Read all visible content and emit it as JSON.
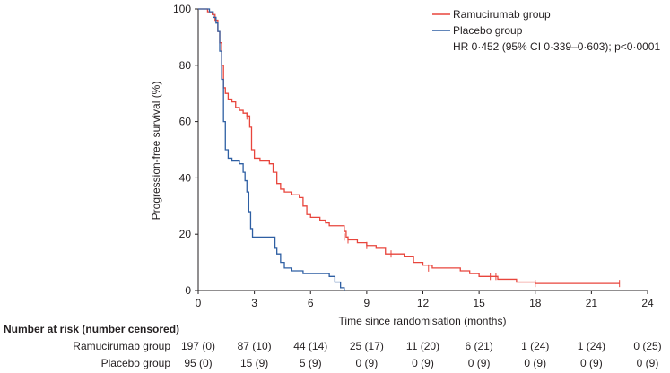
{
  "chart_data": {
    "type": "line",
    "subtype": "kaplan-meier",
    "xlabel": "Time since randomisation (months)",
    "ylabel": "Progression-free survival (%)",
    "xlim": [
      0,
      24
    ],
    "ylim": [
      0,
      100
    ],
    "xticks": [
      0,
      3,
      6,
      9,
      12,
      15,
      18,
      21,
      24
    ],
    "yticks": [
      0,
      20,
      40,
      60,
      80,
      100
    ],
    "legend_position": "top-right",
    "annotation": "HR 0·452 (95% CI 0·339–0·603); p<0·0001",
    "series": [
      {
        "name": "Ramucirumab group",
        "color": "#e8453c",
        "steps": [
          [
            0,
            100
          ],
          [
            0.5,
            99
          ],
          [
            0.75,
            98
          ],
          [
            0.9,
            96
          ],
          [
            1.05,
            92
          ],
          [
            1.15,
            88
          ],
          [
            1.25,
            80
          ],
          [
            1.35,
            72
          ],
          [
            1.45,
            70
          ],
          [
            1.6,
            68
          ],
          [
            1.8,
            67
          ],
          [
            2.0,
            65
          ],
          [
            2.2,
            64
          ],
          [
            2.4,
            63
          ],
          [
            2.6,
            62
          ],
          [
            2.75,
            58
          ],
          [
            2.85,
            50
          ],
          [
            3.0,
            47
          ],
          [
            3.3,
            46
          ],
          [
            3.8,
            45
          ],
          [
            4.0,
            42
          ],
          [
            4.2,
            38
          ],
          [
            4.4,
            36
          ],
          [
            4.6,
            35
          ],
          [
            5.0,
            34
          ],
          [
            5.4,
            33
          ],
          [
            5.6,
            30
          ],
          [
            5.8,
            27
          ],
          [
            6.0,
            26
          ],
          [
            6.5,
            25
          ],
          [
            6.8,
            24
          ],
          [
            7.0,
            23
          ],
          [
            7.8,
            21
          ],
          [
            7.9,
            19
          ],
          [
            8.0,
            18
          ],
          [
            8.5,
            17
          ],
          [
            9.0,
            16
          ],
          [
            9.5,
            15
          ],
          [
            10.0,
            13
          ],
          [
            11.0,
            12
          ],
          [
            11.5,
            10
          ],
          [
            12.0,
            9
          ],
          [
            12.5,
            8
          ],
          [
            14.0,
            7
          ],
          [
            14.5,
            6
          ],
          [
            15.0,
            5
          ],
          [
            16.0,
            4
          ],
          [
            17.0,
            3
          ],
          [
            18.0,
            2.5
          ],
          [
            22.5,
            2.5
          ]
        ],
        "censored": [
          [
            2.6,
            62
          ],
          [
            7.8,
            19
          ],
          [
            8.0,
            18
          ],
          [
            9.0,
            16
          ],
          [
            10.3,
            13
          ],
          [
            12.3,
            8
          ],
          [
            15.6,
            5
          ],
          [
            15.9,
            5
          ],
          [
            18.0,
            2.5
          ],
          [
            22.5,
            2.5
          ]
        ]
      },
      {
        "name": "Placebo group",
        "color": "#2e5fa3",
        "steps": [
          [
            0,
            100
          ],
          [
            0.6,
            99
          ],
          [
            0.8,
            97
          ],
          [
            0.95,
            95
          ],
          [
            1.05,
            92
          ],
          [
            1.15,
            85
          ],
          [
            1.25,
            75
          ],
          [
            1.35,
            60
          ],
          [
            1.45,
            50
          ],
          [
            1.6,
            47
          ],
          [
            1.8,
            46
          ],
          [
            2.2,
            45
          ],
          [
            2.4,
            42
          ],
          [
            2.5,
            39
          ],
          [
            2.6,
            35
          ],
          [
            2.7,
            28
          ],
          [
            2.8,
            22
          ],
          [
            2.9,
            19
          ],
          [
            4.0,
            19
          ],
          [
            4.1,
            15
          ],
          [
            4.2,
            13
          ],
          [
            4.4,
            10
          ],
          [
            4.6,
            8
          ],
          [
            5.0,
            7
          ],
          [
            5.6,
            6
          ],
          [
            6.5,
            6
          ],
          [
            7.0,
            5
          ],
          [
            7.3,
            3
          ],
          [
            7.6,
            1
          ],
          [
            7.8,
            0
          ]
        ],
        "censored": []
      }
    ]
  },
  "number_at_risk": {
    "title": "Number at risk (number censored)",
    "rows": [
      {
        "name": "Ramucirumab group",
        "values": [
          "197 (0)",
          "87 (10)",
          "44 (14)",
          "25 (17)",
          "11 (20)",
          "6 (21)",
          "1 (24)",
          "1 (24)",
          "0 (25)"
        ]
      },
      {
        "name": "Placebo group",
        "values": [
          "95 (0)",
          "15 (9)",
          "5 (9)",
          "0 (9)",
          "0 (9)",
          "0 (9)",
          "0 (9)",
          "0 (9)",
          "0 (9)"
        ]
      }
    ]
  }
}
